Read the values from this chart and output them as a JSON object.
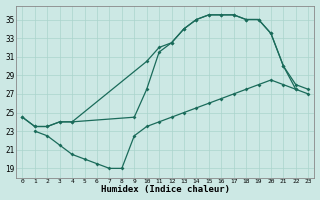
{
  "xlabel": "Humidex (Indice chaleur)",
  "bg_color": "#cce8e4",
  "grid_color": "#aad4cc",
  "line_color": "#1a6b5a",
  "xlim": [
    -0.5,
    23.5
  ],
  "ylim": [
    18,
    36.5
  ],
  "xticks": [
    0,
    1,
    2,
    3,
    4,
    5,
    6,
    7,
    8,
    9,
    10,
    11,
    12,
    13,
    14,
    15,
    16,
    17,
    18,
    19,
    20,
    21,
    22,
    23
  ],
  "yticks": [
    19,
    21,
    23,
    25,
    27,
    29,
    31,
    33,
    35
  ],
  "line1_x": [
    0,
    1,
    2,
    3,
    4,
    10,
    11,
    12,
    13,
    14,
    15,
    16,
    17,
    18,
    19,
    20,
    21,
    22,
    23
  ],
  "line1_y": [
    24.5,
    23.5,
    23.5,
    24.0,
    24.0,
    30.5,
    32.0,
    32.5,
    34.0,
    35.0,
    35.5,
    35.5,
    35.5,
    35.0,
    35.0,
    33.5,
    30.0,
    28.0,
    27.5
  ],
  "line2_x": [
    0,
    1,
    2,
    3,
    4,
    9,
    10,
    11,
    12,
    13,
    14,
    15,
    16,
    17,
    18,
    19,
    20,
    21,
    22
  ],
  "line2_y": [
    24.5,
    23.5,
    23.5,
    24.0,
    24.0,
    24.5,
    27.5,
    31.5,
    32.5,
    34.0,
    35.0,
    35.5,
    35.5,
    35.5,
    35.0,
    35.0,
    33.5,
    30.0,
    27.5
  ],
  "line3_x": [
    1,
    2,
    3,
    4,
    5,
    6,
    7,
    8,
    9,
    10,
    11,
    12,
    13,
    14,
    15,
    16,
    17,
    18,
    19,
    20,
    21,
    22,
    23
  ],
  "line3_y": [
    23.0,
    22.5,
    21.5,
    20.5,
    20.0,
    19.5,
    19.0,
    19.0,
    22.5,
    23.5,
    24.0,
    24.5,
    25.0,
    25.5,
    26.0,
    26.5,
    27.0,
    27.5,
    28.0,
    28.5,
    28.0,
    27.5,
    27.0
  ]
}
